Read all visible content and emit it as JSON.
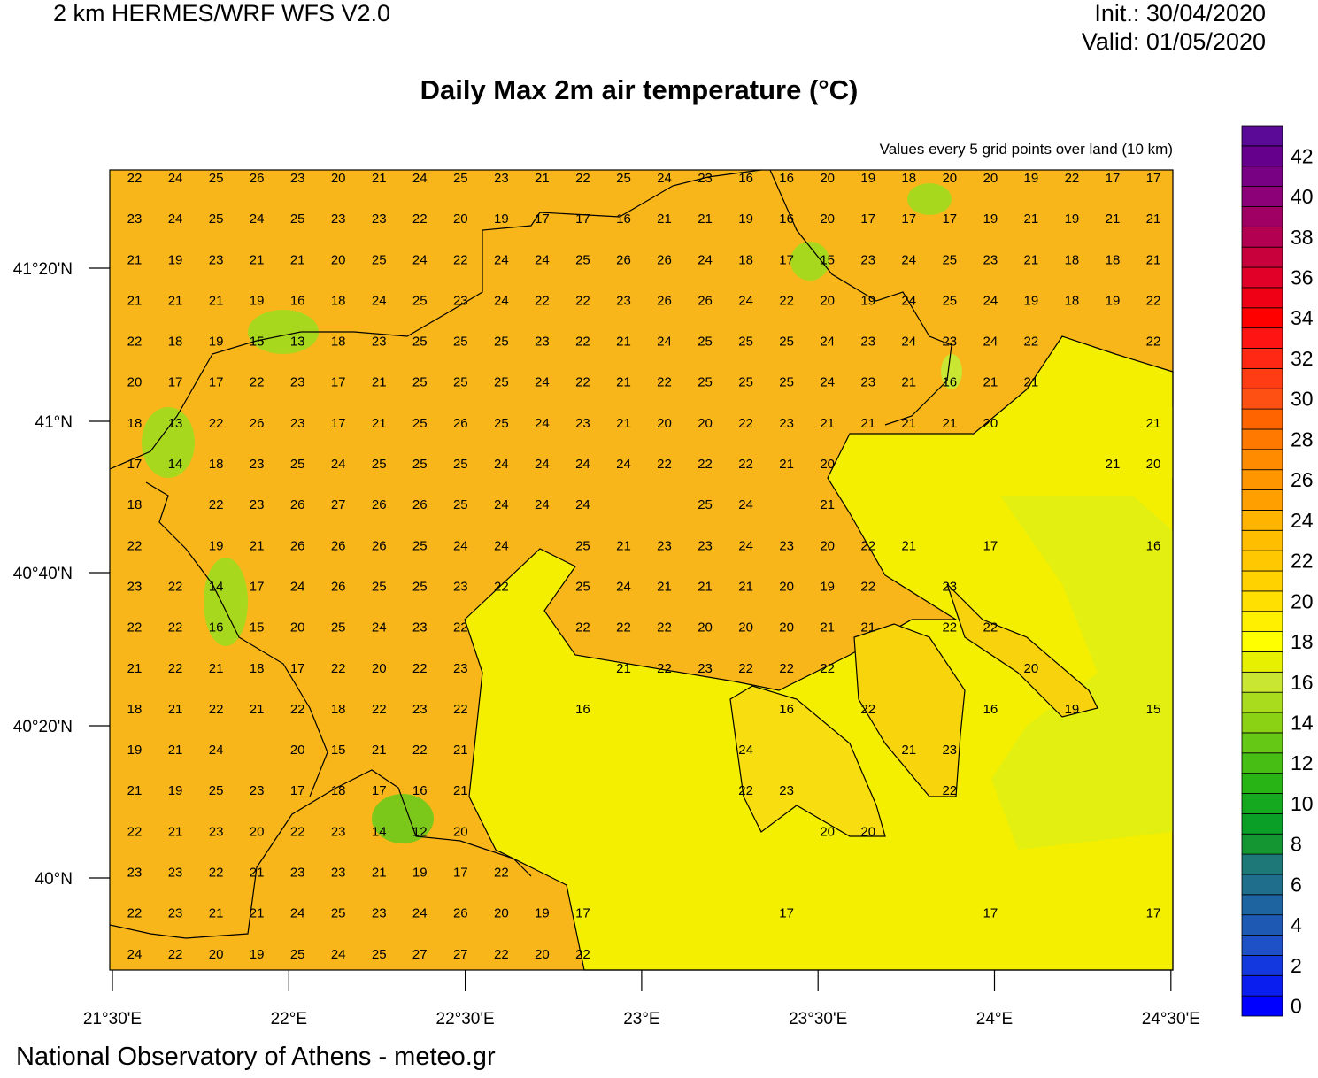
{
  "header": {
    "model": "2 km HERMES/WRF WFS V2.0",
    "init": "Init.: 30/04/2020",
    "valid": "Valid: 01/05/2020"
  },
  "title": "Daily Max 2m air temperature (°C)",
  "subtitle": "Values every 5 grid points over land (10 km)",
  "grid_values": [
    [
      22,
      24,
      25,
      26,
      23,
      20,
      21,
      24,
      25,
      23,
      21,
      22,
      25,
      24,
      23,
      16,
      16,
      20,
      19,
      18,
      20,
      20,
      19,
      22,
      17,
      17
    ],
    [
      23,
      24,
      25,
      24,
      25,
      23,
      23,
      22,
      20,
      19,
      17,
      17,
      16,
      21,
      21,
      19,
      16,
      20,
      17,
      17,
      17,
      19,
      21,
      19,
      21,
      21
    ],
    [
      21,
      19,
      23,
      21,
      21,
      20,
      25,
      24,
      22,
      24,
      24,
      25,
      26,
      26,
      24,
      18,
      17,
      15,
      23,
      24,
      25,
      23,
      21,
      18,
      18,
      21
    ],
    [
      21,
      21,
      21,
      19,
      16,
      18,
      24,
      25,
      23,
      24,
      22,
      22,
      23,
      26,
      26,
      24,
      22,
      20,
      19,
      24,
      25,
      24,
      19,
      18,
      19,
      22
    ],
    [
      22,
      18,
      19,
      15,
      13,
      18,
      23,
      25,
      25,
      25,
      23,
      22,
      21,
      24,
      25,
      25,
      25,
      24,
      23,
      24,
      23,
      24,
      22,
      null,
      null,
      22
    ],
    [
      20,
      17,
      17,
      22,
      23,
      17,
      21,
      25,
      25,
      25,
      24,
      22,
      21,
      22,
      25,
      25,
      25,
      24,
      23,
      21,
      16,
      21,
      21,
      null,
      null,
      null
    ],
    [
      18,
      13,
      22,
      26,
      23,
      17,
      21,
      25,
      26,
      25,
      24,
      23,
      21,
      20,
      20,
      22,
      23,
      21,
      21,
      21,
      21,
      20,
      null,
      null,
      null,
      21
    ],
    [
      17,
      14,
      18,
      23,
      25,
      24,
      25,
      25,
      25,
      24,
      24,
      24,
      24,
      22,
      22,
      22,
      21,
      20,
      null,
      null,
      null,
      null,
      null,
      null,
      21,
      20
    ],
    [
      18,
      null,
      22,
      23,
      26,
      27,
      26,
      26,
      25,
      24,
      24,
      24,
      null,
      null,
      25,
      24,
      null,
      21,
      null,
      null,
      null,
      null,
      null,
      null,
      null,
      null
    ],
    [
      22,
      null,
      19,
      21,
      26,
      26,
      26,
      25,
      24,
      24,
      null,
      25,
      21,
      23,
      23,
      24,
      23,
      20,
      22,
      21,
      null,
      17,
      null,
      null,
      null,
      16
    ],
    [
      23,
      22,
      14,
      17,
      24,
      26,
      25,
      25,
      23,
      22,
      null,
      25,
      24,
      21,
      21,
      21,
      20,
      19,
      22,
      null,
      23,
      null,
      null,
      null,
      null,
      null
    ],
    [
      22,
      22,
      16,
      15,
      20,
      25,
      24,
      23,
      22,
      null,
      null,
      22,
      22,
      22,
      20,
      20,
      20,
      21,
      21,
      null,
      22,
      22,
      null,
      null,
      null,
      null
    ],
    [
      21,
      22,
      21,
      18,
      17,
      22,
      20,
      22,
      23,
      null,
      null,
      null,
      21,
      22,
      23,
      22,
      22,
      22,
      null,
      null,
      null,
      null,
      20,
      null,
      null,
      null
    ],
    [
      18,
      21,
      22,
      21,
      22,
      18,
      22,
      23,
      22,
      null,
      null,
      16,
      null,
      null,
      null,
      null,
      16,
      null,
      22,
      null,
      null,
      16,
      null,
      19,
      null,
      15
    ],
    [
      19,
      21,
      24,
      null,
      20,
      15,
      21,
      22,
      21,
      null,
      null,
      null,
      null,
      null,
      null,
      24,
      null,
      null,
      null,
      21,
      23,
      null,
      null,
      null,
      null,
      null
    ],
    [
      21,
      19,
      25,
      23,
      17,
      18,
      17,
      16,
      21,
      null,
      null,
      null,
      null,
      null,
      null,
      22,
      23,
      null,
      null,
      null,
      22,
      null,
      null,
      null,
      null,
      null
    ],
    [
      22,
      21,
      23,
      20,
      22,
      23,
      14,
      12,
      20,
      null,
      null,
      null,
      null,
      null,
      null,
      null,
      null,
      20,
      20,
      null,
      null,
      null,
      null,
      null,
      null,
      null
    ],
    [
      23,
      23,
      22,
      21,
      23,
      23,
      21,
      19,
      17,
      22,
      null,
      null,
      null,
      null,
      null,
      null,
      null,
      null,
      null,
      null,
      null,
      null,
      null,
      null,
      null,
      null
    ],
    [
      22,
      23,
      21,
      21,
      24,
      25,
      23,
      24,
      26,
      20,
      19,
      17,
      null,
      null,
      null,
      null,
      17,
      null,
      null,
      null,
      null,
      17,
      null,
      null,
      null,
      17
    ],
    [
      24,
      22,
      20,
      19,
      25,
      24,
      25,
      27,
      27,
      22,
      20,
      22,
      null,
      null,
      null,
      null,
      null,
      null,
      null,
      null,
      null,
      null,
      null,
      null,
      null,
      null
    ]
  ],
  "lat_labels": [
    "41°20'N",
    "41°N",
    "40°40'N",
    "40°20'N",
    "40°N"
  ],
  "lon_labels": [
    "21°30'E",
    "22°E",
    "22°30'E",
    "23°E",
    "23°30'E",
    "24°E",
    "24°30'E"
  ],
  "colorbar": {
    "ticks": [
      0,
      2,
      4,
      6,
      8,
      10,
      12,
      14,
      16,
      18,
      20,
      22,
      24,
      26,
      28,
      30,
      32,
      34,
      36,
      38,
      40,
      42
    ],
    "colors": [
      "#0000ff",
      "#0a1ef0",
      "#1438e0",
      "#1e50c8",
      "#1e5ab4",
      "#1e64a0",
      "#1e6e8c",
      "#1e7878",
      "#149632",
      "#0aa028",
      "#14a91e",
      "#28b414",
      "#46be14",
      "#64c814",
      "#8cd214",
      "#aadc1e",
      "#c8e632",
      "#e6f000",
      "#ffff00",
      "#fff000",
      "#ffe000",
      "#ffd200",
      "#ffc800",
      "#ffbe00",
      "#ffb400",
      "#ffa000",
      "#ff9600",
      "#ff8c00",
      "#ff7800",
      "#ff6400",
      "#ff5014",
      "#ff3c14",
      "#ff2814",
      "#ff1414",
      "#ff0000",
      "#f00014",
      "#e00028",
      "#c8003c",
      "#b40050",
      "#a00064",
      "#8c0078",
      "#780082",
      "#64008c",
      "#5a0a96"
    ]
  },
  "footer": "National Observatory of Athens - meteo.gr"
}
